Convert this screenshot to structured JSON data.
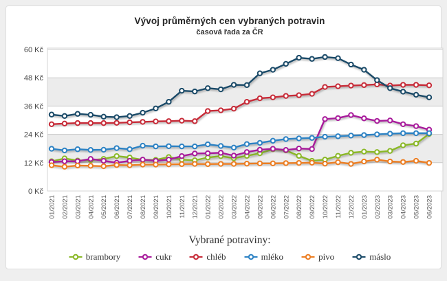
{
  "card": {
    "title": "Vývoj průměrných cen vybraných potravin",
    "subtitle": "časová řada za ČR"
  },
  "legend": {
    "title": "Vybrané potraviny:"
  },
  "chart_data": {
    "type": "line",
    "title": "Vývoj průměrných cen vybraných potravin",
    "subtitle": "časová řada za ČR",
    "unit": "Kč",
    "ylim": [
      0,
      60
    ],
    "y_tick_values": [
      0,
      12,
      24,
      36,
      48,
      60
    ],
    "y_tick_labels": [
      "0 Kč",
      "12 Kč",
      "24 Kč",
      "36 Kč",
      "48 Kč",
      "60 Kč"
    ],
    "grid": true,
    "band_fill_between": [
      [
        48,
        36
      ],
      [
        24,
        12
      ]
    ],
    "legend_title": "Vybrané potraviny:",
    "legend_position": "bottom",
    "x": [
      "01/2021",
      "02/2021",
      "03/2021",
      "04/2021",
      "05/2021",
      "06/2021",
      "07/2021",
      "08/2021",
      "09/2021",
      "10/2021",
      "11/2021",
      "12/2021",
      "01/2022",
      "02/2022",
      "03/2022",
      "04/2022",
      "05/2022",
      "06/2022",
      "07/2022",
      "08/2022",
      "09/2022",
      "10/2022",
      "11/2022",
      "12/2022",
      "01/2023",
      "02/2023",
      "03/2023",
      "04/2023",
      "05/2023",
      "06/2023"
    ],
    "series": [
      {
        "name": "brambory",
        "color": "#8AB826",
        "values": [
          12.6,
          13.8,
          12.9,
          13.1,
          13.6,
          14.8,
          14.2,
          13.2,
          13.2,
          14.4,
          13.3,
          13.0,
          14.2,
          14.8,
          13.9,
          14.9,
          16.0,
          17.7,
          17.2,
          14.9,
          12.8,
          13.3,
          14.9,
          16.2,
          16.7,
          16.5,
          17.0,
          19.4,
          20.1,
          24.2
        ]
      },
      {
        "name": "cukr",
        "color": "#A81A9B",
        "values": [
          12.3,
          12.6,
          12.6,
          13.6,
          12.8,
          12.0,
          12.8,
          13.3,
          12.8,
          13.3,
          14.8,
          15.9,
          16.0,
          16.2,
          15.0,
          16.5,
          17.5,
          17.9,
          17.4,
          18.0,
          17.8,
          30.5,
          30.9,
          32.2,
          30.8,
          29.7,
          29.9,
          28.3,
          27.5,
          26.0
        ]
      },
      {
        "name": "chléb",
        "color": "#C72B38",
        "values": [
          28.3,
          28.6,
          28.8,
          28.8,
          28.8,
          28.9,
          29.1,
          29.3,
          29.5,
          29.6,
          29.8,
          29.6,
          33.9,
          34.2,
          34.9,
          37.8,
          39.3,
          39.7,
          40.3,
          40.6,
          41.2,
          44.1,
          44.4,
          44.7,
          44.9,
          45.2,
          44.7,
          45.0,
          45.0,
          44.8
        ]
      },
      {
        "name": "mléko",
        "color": "#2C82C4",
        "values": [
          17.9,
          17.2,
          17.7,
          17.4,
          17.5,
          18.2,
          17.7,
          19.2,
          18.9,
          19.0,
          18.9,
          18.9,
          19.8,
          19.1,
          18.4,
          19.9,
          20.4,
          21.3,
          22.0,
          22.3,
          22.5,
          23.0,
          23.2,
          23.5,
          23.7,
          24.0,
          24.3,
          24.5,
          24.5,
          24.5
        ]
      },
      {
        "name": "pivo",
        "color": "#EC7D21",
        "values": [
          10.9,
          10.3,
          10.8,
          10.7,
          10.5,
          11.0,
          10.9,
          11.2,
          11.2,
          11.3,
          11.4,
          11.5,
          11.4,
          11.5,
          11.5,
          11.6,
          11.7,
          11.7,
          11.8,
          11.9,
          12.0,
          11.6,
          12.2,
          11.5,
          12.5,
          13.3,
          12.5,
          12.3,
          12.8,
          11.9
        ]
      },
      {
        "name": "máslo",
        "color": "#1A4A68",
        "values": [
          32.4,
          31.8,
          32.7,
          32.3,
          31.5,
          31.3,
          31.8,
          33.2,
          35.0,
          37.8,
          42.5,
          42.2,
          43.6,
          43.1,
          45.0,
          44.9,
          49.9,
          51.4,
          53.9,
          56.5,
          56.0,
          56.8,
          56.3,
          53.6,
          51.4,
          47.0,
          43.6,
          42.1,
          40.8,
          39.7
        ]
      }
    ]
  },
  "colors": {
    "page_bg": "#efefef",
    "card_bg": "#ffffff",
    "band": "#ececec",
    "gridline": "#c9c9c9",
    "plot_border": "#d4d4d4"
  }
}
